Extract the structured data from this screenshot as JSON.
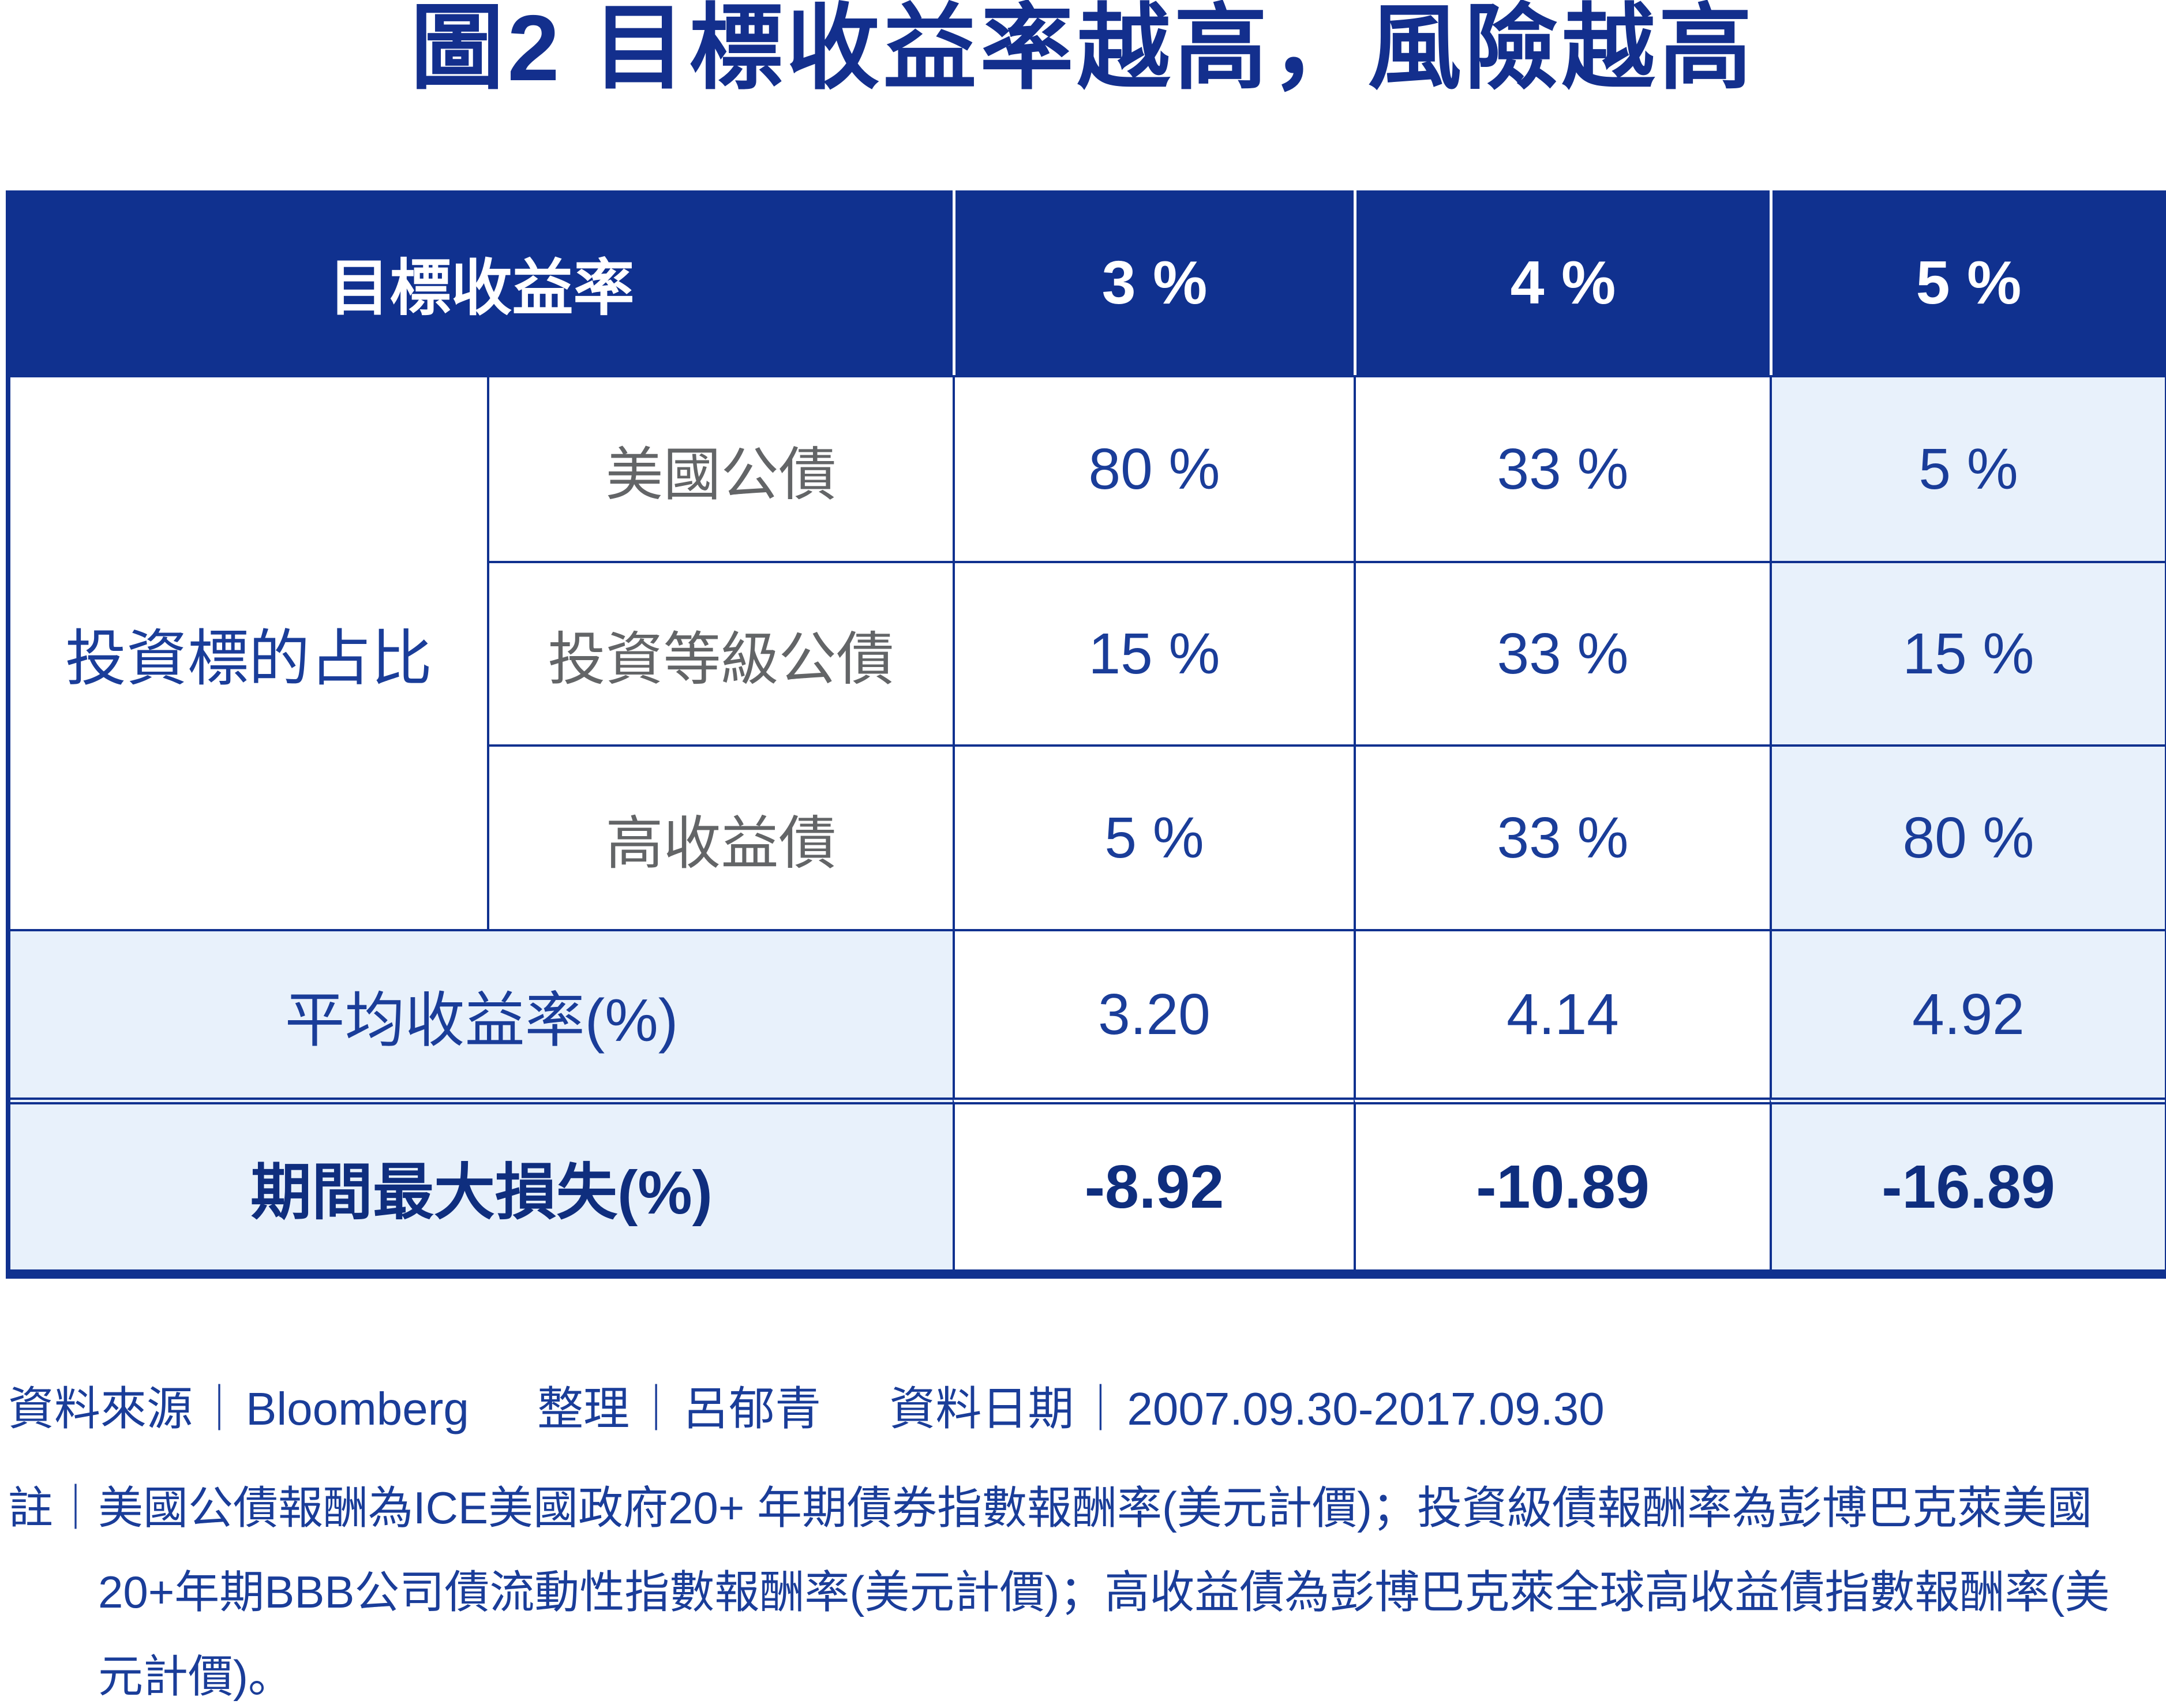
{
  "title": "圖2  目標收益率越高，風險越高",
  "colors": {
    "primary_blue": "#10318F",
    "text_blue": "#1A3D99",
    "bold_dark_blue": "#0F2E7E",
    "highlight_light_blue": "#E8F1FB",
    "sub_label_gray": "#636567",
    "header_text": "#FFFFFF"
  },
  "table": {
    "header": {
      "label": "目標收益率",
      "columns": [
        "3 %",
        "4 %",
        "5 %"
      ]
    },
    "allocation": {
      "group_label": "投資標的占比",
      "rows": [
        {
          "label": "美國公債",
          "values": [
            "80 %",
            "33 %",
            "5 %"
          ]
        },
        {
          "label": "投資等級公債",
          "values": [
            "15 %",
            "33 %",
            "15 %"
          ]
        },
        {
          "label": "高收益債",
          "values": [
            "5 %",
            "33 %",
            "80 %"
          ]
        }
      ]
    },
    "summary_rows": [
      {
        "label": "平均收益率(%)",
        "values": [
          "3.20",
          "4.14",
          "4.92"
        ]
      },
      {
        "label": "期間最大損失(%)",
        "values": [
          "-8.92",
          "-10.89",
          "-16.89"
        ]
      }
    ]
  },
  "chart_data": {
    "type": "table",
    "title": "圖2 目標收益率越高，風險越高",
    "columns": [
      "目標收益率",
      "3 %",
      "4 %",
      "5 %"
    ],
    "rows": [
      {
        "group": "投資標的占比",
        "label": "美國公債",
        "values_pct": [
          80,
          33,
          5
        ]
      },
      {
        "group": "投資標的占比",
        "label": "投資等級公債",
        "values_pct": [
          15,
          33,
          15
        ]
      },
      {
        "group": "投資標的占比",
        "label": "高收益債",
        "values_pct": [
          5,
          33,
          80
        ]
      },
      {
        "group": "",
        "label": "平均收益率(%)",
        "values_pct": [
          3.2,
          4.14,
          4.92
        ]
      },
      {
        "group": "",
        "label": "期間最大損失(%)",
        "values_pct": [
          -8.92,
          -10.89,
          -16.89
        ]
      }
    ],
    "highlighted_column": "5 %"
  },
  "footer": {
    "separator": "｜",
    "source_label": "資料來源",
    "source_value": "Bloomberg",
    "editor_label": "整理",
    "editor_value": "呂郁青",
    "date_label": "資料日期",
    "date_value": "2007.09.30-2017.09.30"
  },
  "note": {
    "prefix": "註｜",
    "full_text": "美國公債報酬為ICE美國政府20+ 年期債券指數報酬率(美元計價)；投資級債報酬率為彭博巴克萊美國20+年期BBB公司債流動性指數報酬率(美元計價)；高收益債為彭博巴克萊全球高收益債指數報酬率(美元計價)。",
    "lines": [
      "美國公債報酬為ICE美國政府20+ 年期債券指數報酬率(美元計價)；投資級債報酬率為彭博巴克萊美國",
      "20+年期BBB公司債流動性指數報酬率(美元計價)；高收益債為彭博巴克萊全球高收益債指數報酬率(美",
      "元計價)。"
    ]
  }
}
